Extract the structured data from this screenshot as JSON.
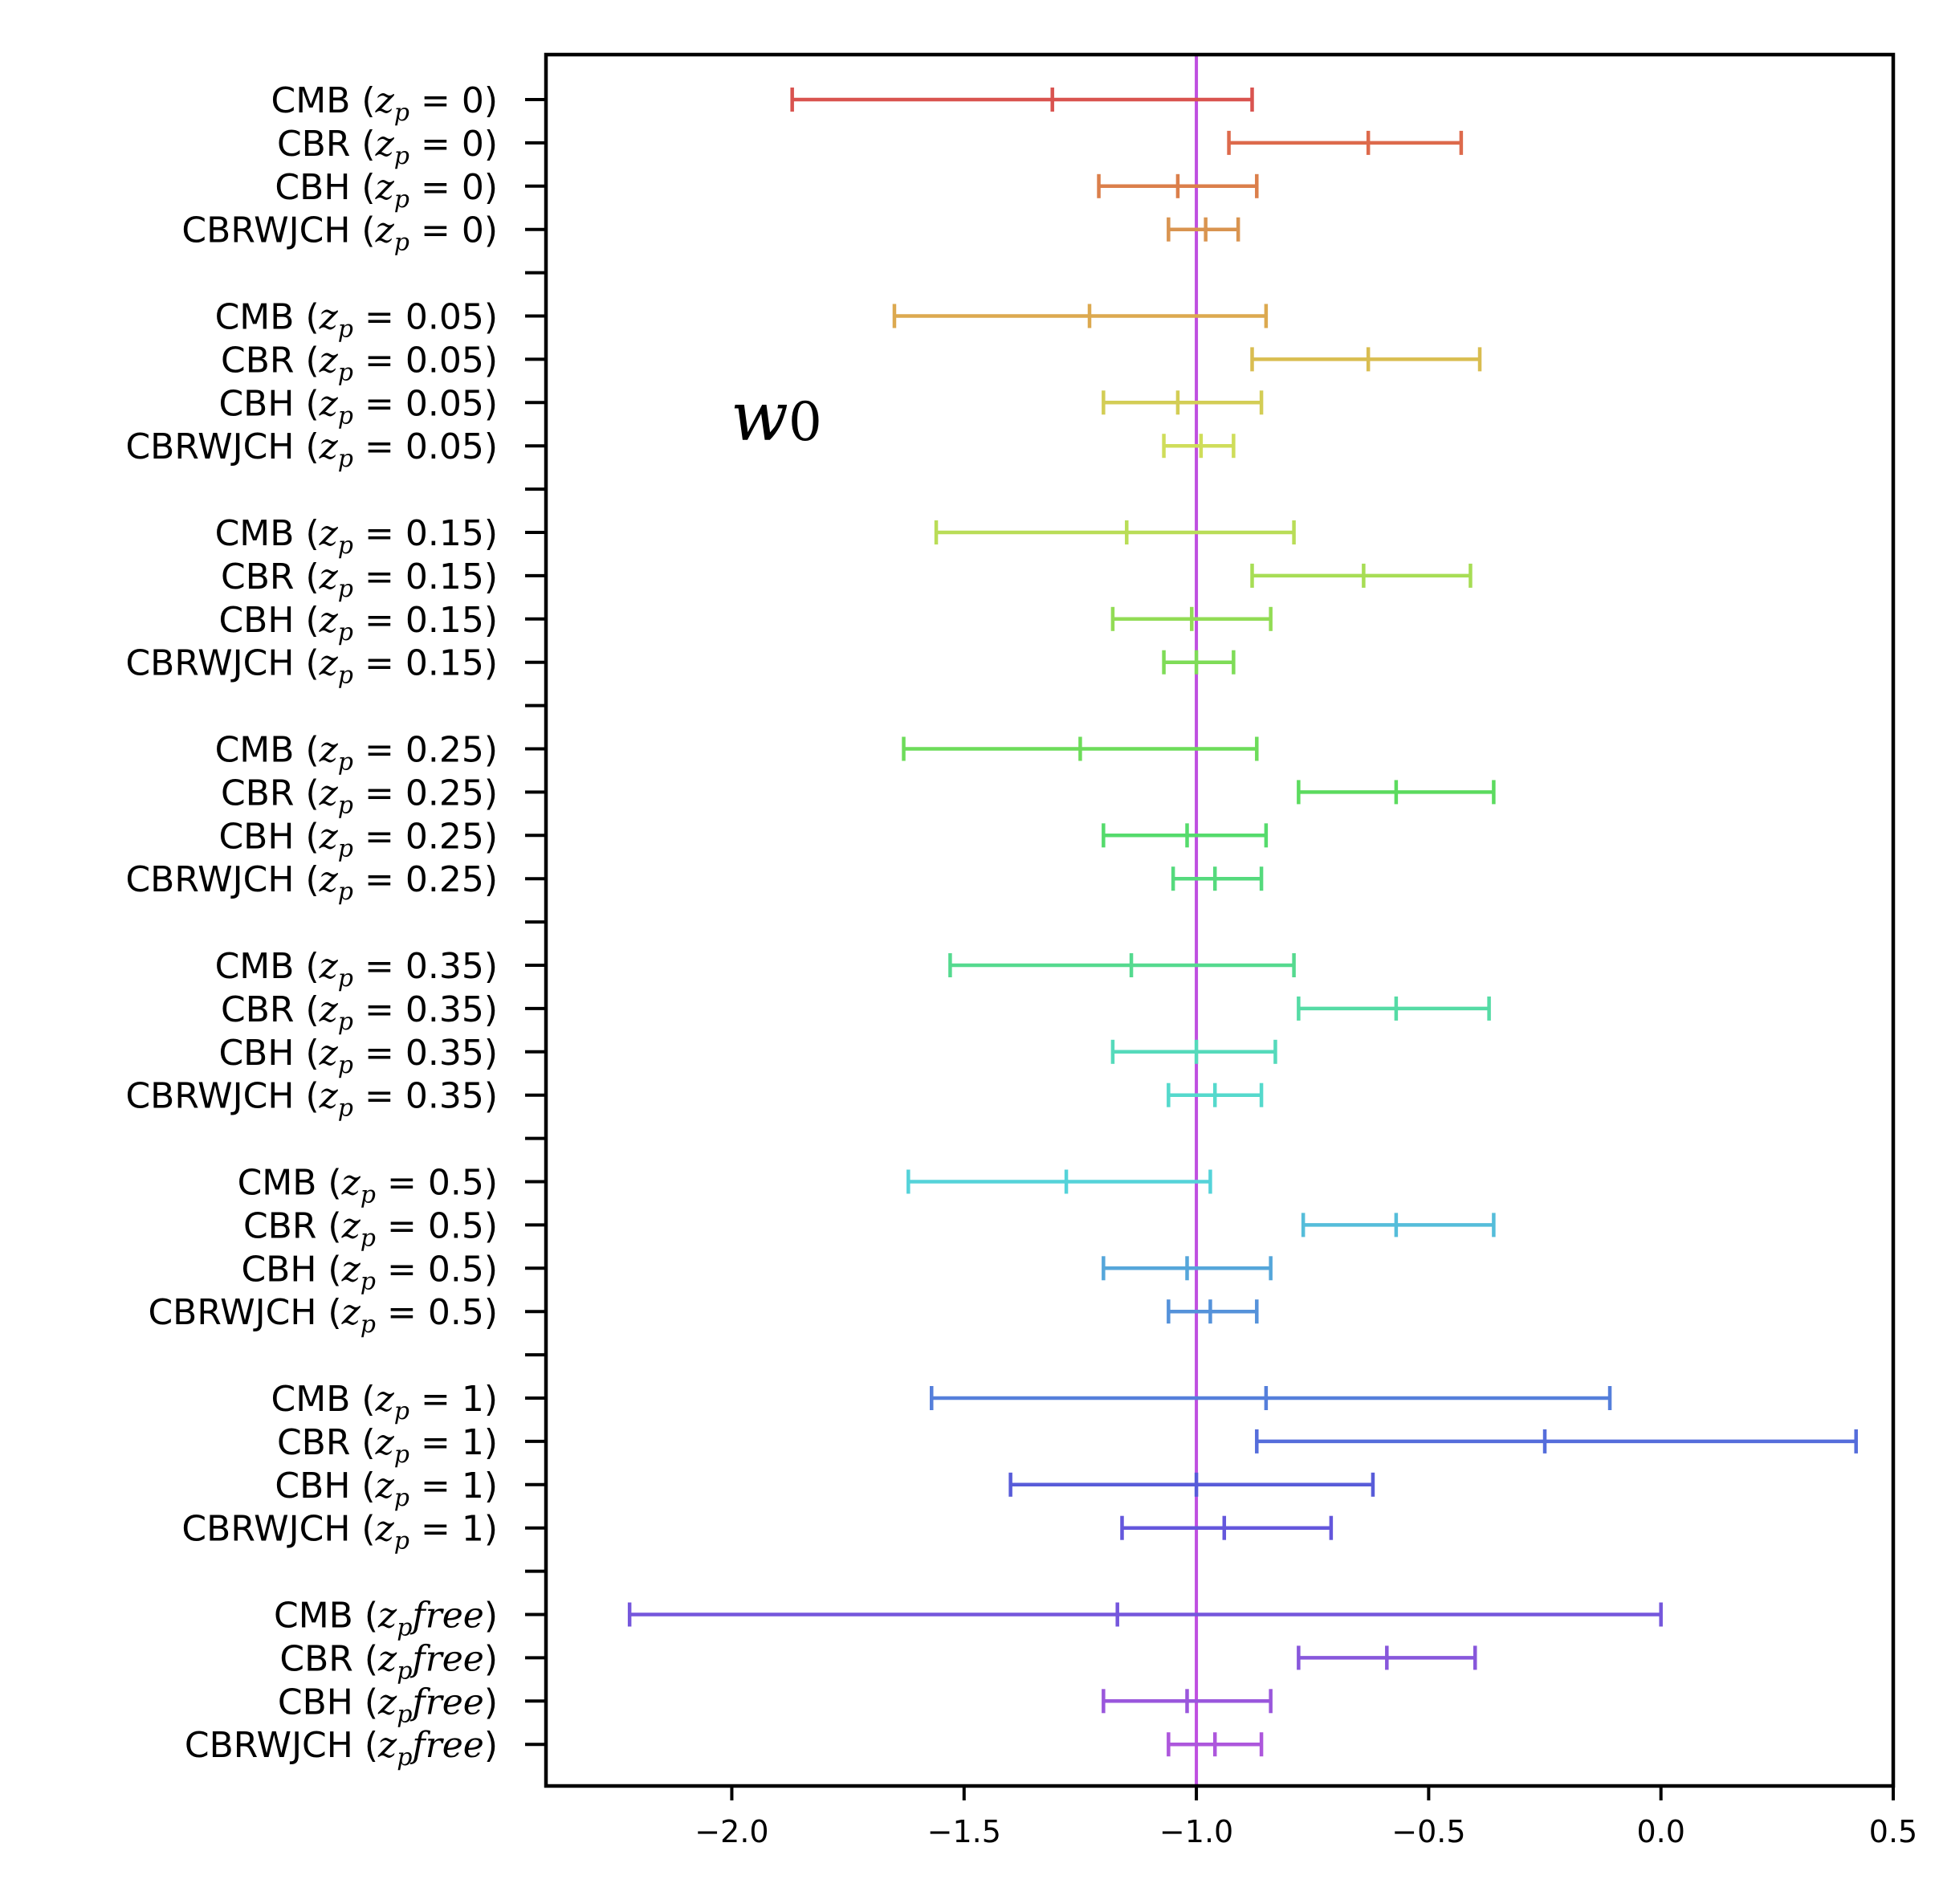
{
  "chart_data": {
    "type": "errorbar",
    "title": "",
    "annotation": {
      "text": "w",
      "subscript": "0"
    },
    "xlim": [
      -2.4,
      0.5
    ],
    "xticks": [
      -2.0,
      -1.5,
      -1.0,
      -0.5,
      0.0,
      0.5
    ],
    "xtick_labels": [
      "−2.0",
      "−1.5",
      "−1.0",
      "−0.5",
      "0.0",
      "0.5"
    ],
    "reference_line": {
      "x": -1.0,
      "color": "#bf4fe0"
    },
    "groups": [
      {
        "zp": "0",
        "entries": [
          {
            "name": "CMB",
            "best": -1.31,
            "low": -1.87,
            "high": -0.88,
            "color": "#d9534f"
          },
          {
            "name": "CBR",
            "best": -0.63,
            "low": -0.93,
            "high": -0.43,
            "color": "#dd6a4c"
          },
          {
            "name": "CBH",
            "best": -1.04,
            "low": -1.21,
            "high": -0.87,
            "color": "#db7f4b"
          },
          {
            "name": "CBRWJCH",
            "best": -0.98,
            "low": -1.06,
            "high": -0.91,
            "color": "#d99450"
          }
        ]
      },
      {
        "zp": "0.05",
        "entries": [
          {
            "name": "CMB",
            "best": -1.23,
            "low": -1.65,
            "high": -0.85,
            "color": "#dca94f"
          },
          {
            "name": "CBR",
            "best": -0.63,
            "low": -0.88,
            "high": -0.39,
            "color": "#d9bd50"
          },
          {
            "name": "CBH",
            "best": -1.04,
            "low": -1.2,
            "high": -0.86,
            "color": "#d3cd55"
          },
          {
            "name": "CBRWJCH",
            "best": -0.99,
            "low": -1.07,
            "high": -0.92,
            "color": "#cfdd5a"
          }
        ]
      },
      {
        "zp": "0.15",
        "entries": [
          {
            "name": "CMB",
            "best": -1.15,
            "low": -1.56,
            "high": -0.79,
            "color": "#b9dd57"
          },
          {
            "name": "CBR",
            "best": -0.64,
            "low": -0.88,
            "high": -0.41,
            "color": "#a7dd55"
          },
          {
            "name": "CBH",
            "best": -1.01,
            "low": -1.18,
            "high": -0.84,
            "color": "#92dc55"
          },
          {
            "name": "CBRWJCH",
            "best": -1.0,
            "low": -1.07,
            "high": -0.92,
            "color": "#7edc57"
          }
        ]
      },
      {
        "zp": "0.25",
        "entries": [
          {
            "name": "CMB",
            "best": -1.25,
            "low": -1.63,
            "high": -0.87,
            "color": "#6ddc5a"
          },
          {
            "name": "CBR",
            "best": -0.57,
            "low": -0.78,
            "high": -0.36,
            "color": "#5cdb5f"
          },
          {
            "name": "CBH",
            "best": -1.02,
            "low": -1.2,
            "high": -0.85,
            "color": "#55db6c"
          },
          {
            "name": "CBRWJCH",
            "best": -0.96,
            "low": -1.05,
            "high": -0.86,
            "color": "#55da7d"
          }
        ]
      },
      {
        "zp": "0.35",
        "entries": [
          {
            "name": "CMB",
            "best": -1.14,
            "low": -1.53,
            "high": -0.79,
            "color": "#55da8f"
          },
          {
            "name": "CBR",
            "best": -0.57,
            "low": -0.78,
            "high": -0.37,
            "color": "#55dba5"
          },
          {
            "name": "CBH",
            "best": -1.0,
            "low": -1.18,
            "high": -0.83,
            "color": "#55dabb"
          },
          {
            "name": "CBRWJCH",
            "best": -0.96,
            "low": -1.06,
            "high": -0.86,
            "color": "#55d9cc"
          }
        ]
      },
      {
        "zp": "0.5",
        "entries": [
          {
            "name": "CMB",
            "best": -1.28,
            "low": -1.62,
            "high": -0.97,
            "color": "#55d3d9"
          },
          {
            "name": "CBR",
            "best": -0.57,
            "low": -0.77,
            "high": -0.36,
            "color": "#55bdda"
          },
          {
            "name": "CBH",
            "best": -1.02,
            "low": -1.2,
            "high": -0.84,
            "color": "#55a6da"
          },
          {
            "name": "CBRWJCH",
            "best": -0.97,
            "low": -1.06,
            "high": -0.87,
            "color": "#5592da"
          }
        ]
      },
      {
        "zp": "1",
        "entries": [
          {
            "name": "CMB",
            "best": -0.85,
            "low": -1.57,
            "high": -0.11,
            "color": "#557fdb"
          },
          {
            "name": "CBR",
            "best": -0.25,
            "low": -0.87,
            "high": 0.42,
            "color": "#556ddb"
          },
          {
            "name": "CBH",
            "best": -1.0,
            "low": -1.4,
            "high": -0.62,
            "color": "#585cd9"
          },
          {
            "name": "CBRWJCH",
            "best": -0.94,
            "low": -1.16,
            "high": -0.71,
            "color": "#6457dc"
          }
        ]
      },
      {
        "zp": "free",
        "entries": [
          {
            "name": "CMB",
            "best": -1.17,
            "low": -2.22,
            "high": 0.0,
            "color": "#7557dc"
          },
          {
            "name": "CBR",
            "best": -0.59,
            "low": -0.78,
            "high": -0.4,
            "color": "#8757db"
          },
          {
            "name": "CBH",
            "best": -1.02,
            "low": -1.2,
            "high": -0.84,
            "color": "#9a57dc"
          },
          {
            "name": "CBRWJCH",
            "best": -0.96,
            "low": -1.06,
            "high": -0.86,
            "color": "#ad57dc"
          }
        ]
      }
    ]
  }
}
